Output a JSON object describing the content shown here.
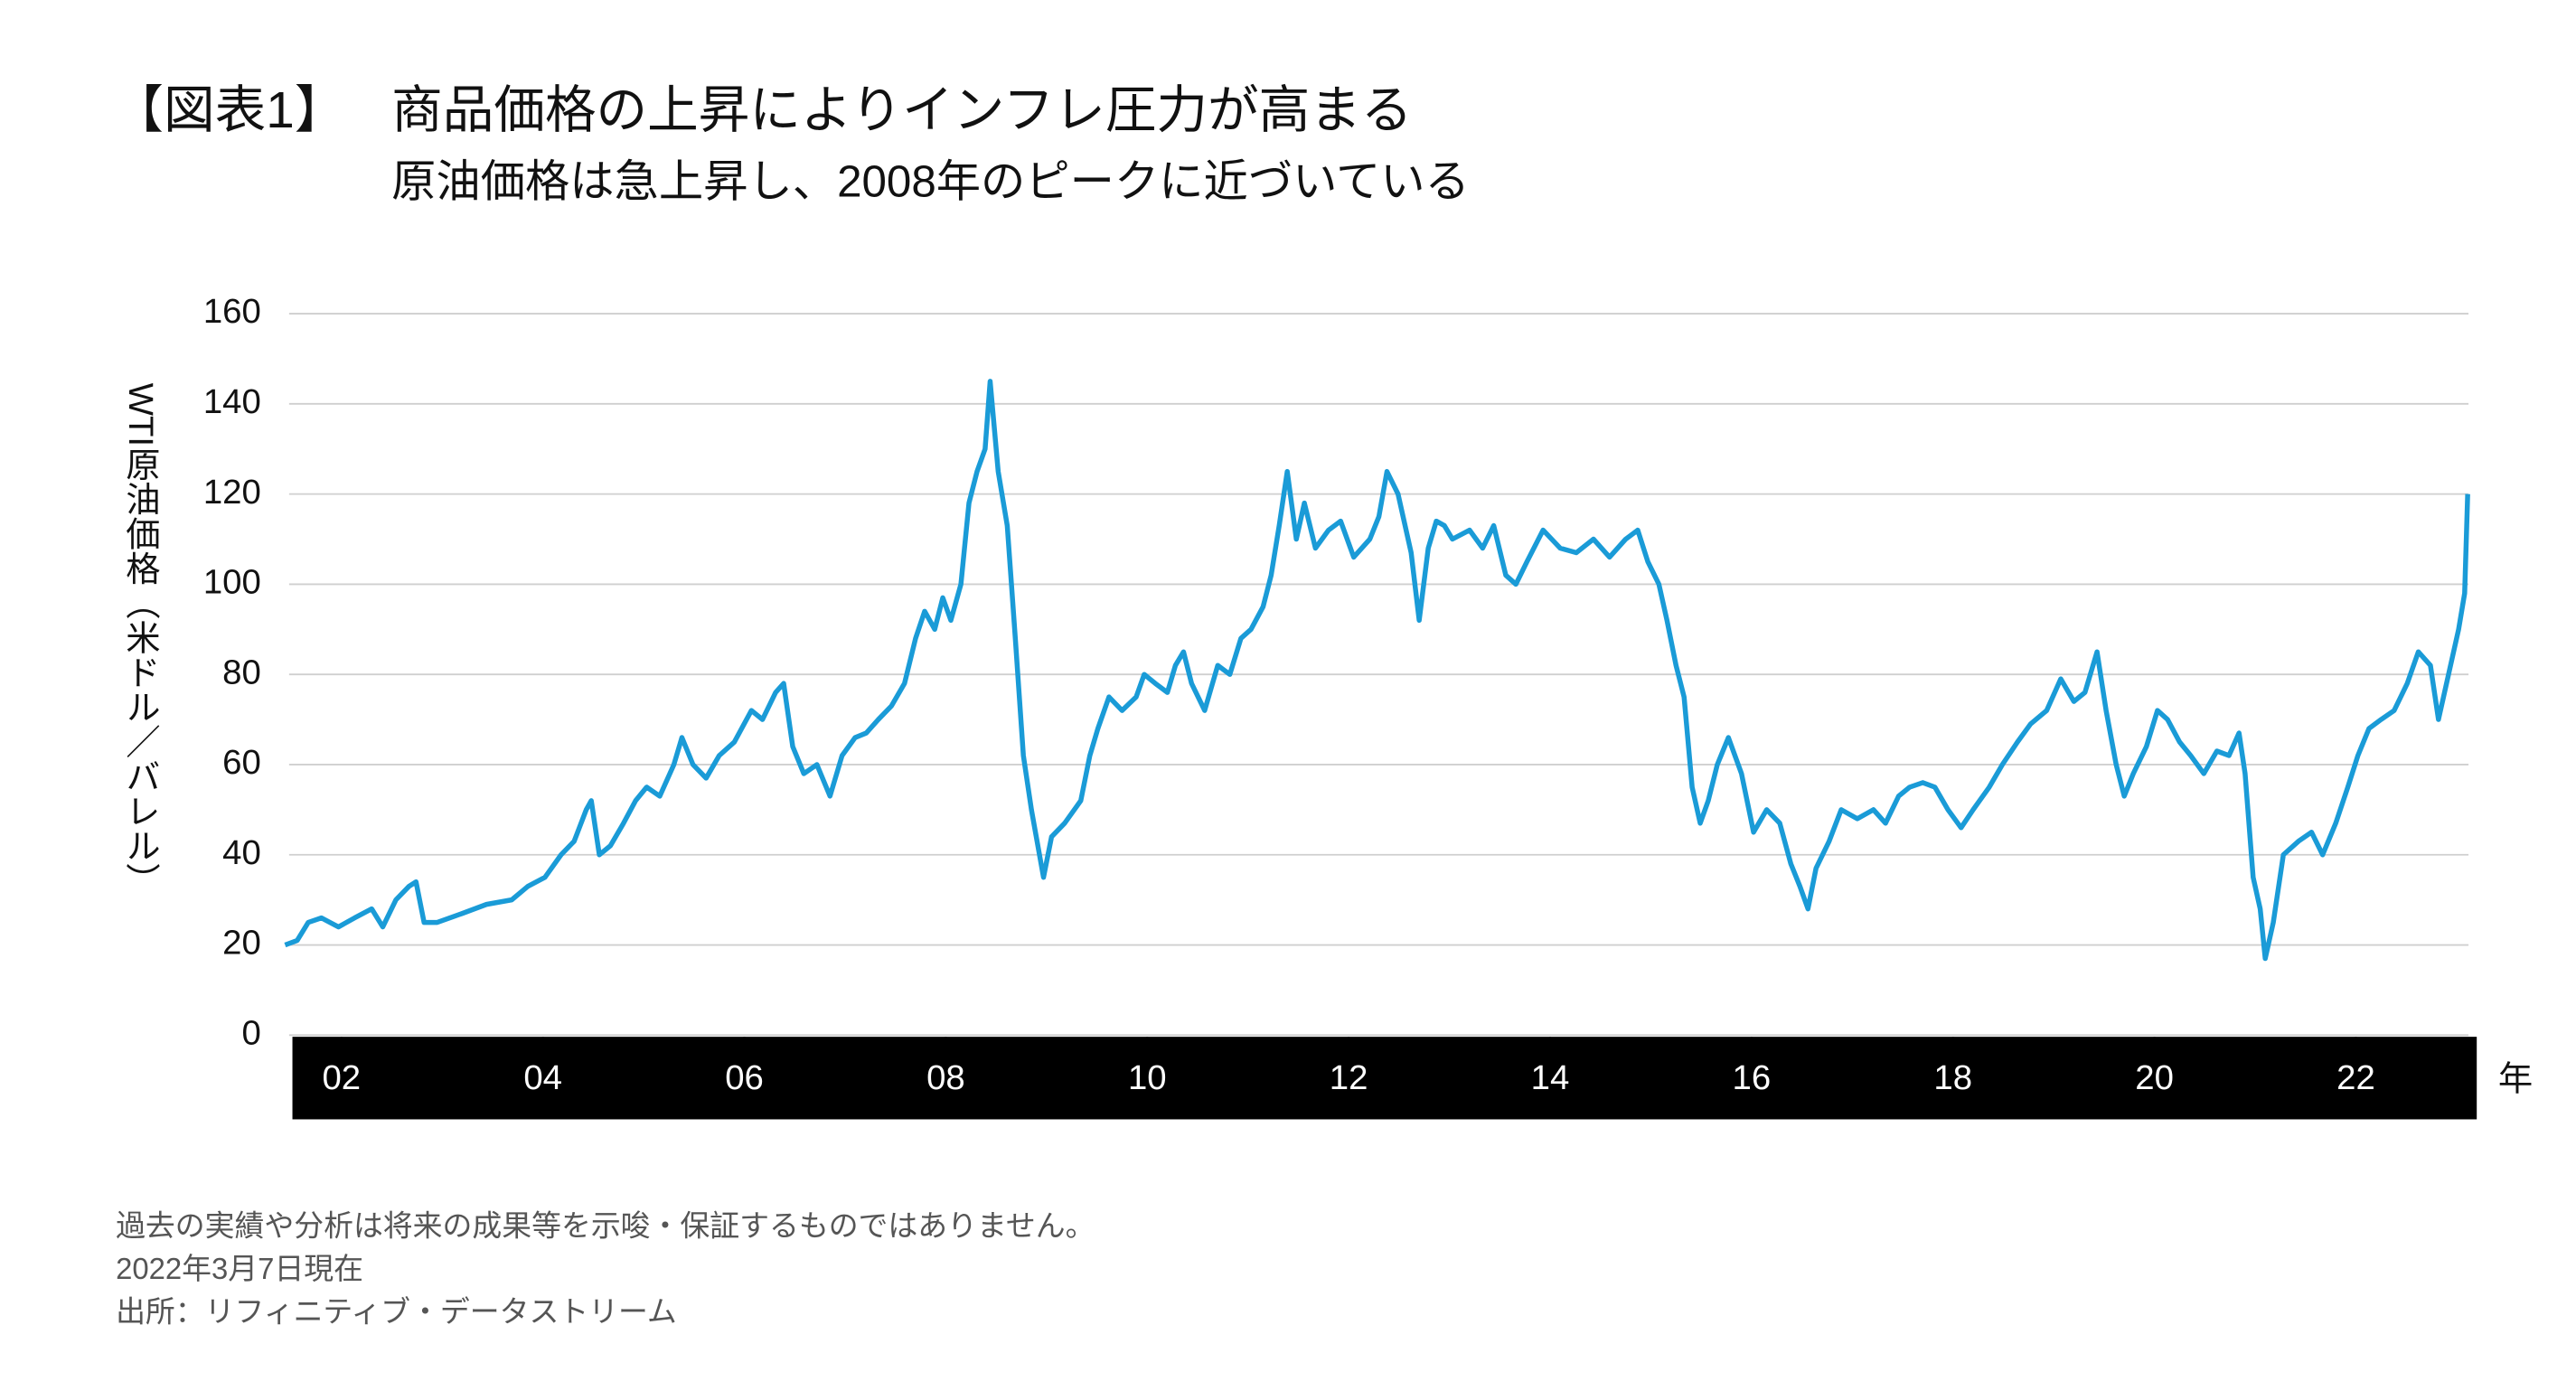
{
  "chart_data": {
    "type": "line",
    "title_label": "【図表1】",
    "title": "商品価格の上昇によりインフレ圧力が高まる",
    "subtitle": "原油価格は急上昇し、2008年のピークに近づいている",
    "y_label": "WTI原油価格（米ドル／バレル）",
    "x_label": "年",
    "notes": [
      "過去の実績や分析は将来の成果等を示唆・保証するものではありません。",
      "2022年3月7日現在",
      "出所：リフィニティブ・データストリーム"
    ],
    "color": "#1a9bd7",
    "grid": true,
    "xlim": [
      2001.48,
      2023.2
    ],
    "xticks": [
      {
        "value": 2002,
        "label": "02"
      },
      {
        "value": 2004,
        "label": "04"
      },
      {
        "value": 2006,
        "label": "06"
      },
      {
        "value": 2008,
        "label": "08"
      },
      {
        "value": 2010,
        "label": "10"
      },
      {
        "value": 2012,
        "label": "12"
      },
      {
        "value": 2014,
        "label": "14"
      },
      {
        "value": 2016,
        "label": "16"
      },
      {
        "value": 2018,
        "label": "18"
      },
      {
        "value": 2020,
        "label": "20"
      },
      {
        "value": 2022,
        "label": "22"
      }
    ],
    "ylim": [
      0,
      160
    ],
    "yticks": [
      0,
      20,
      40,
      60,
      80,
      100,
      120,
      140,
      160
    ],
    "x": [
      2001.44,
      2001.56,
      2001.67,
      2001.8,
      2001.97,
      2002.13,
      2002.3,
      2002.41,
      2002.54,
      2002.67,
      2002.74,
      2002.82,
      2002.95,
      2003.2,
      2003.44,
      2003.69,
      2003.85,
      2004.02,
      2004.18,
      2004.31,
      2004.43,
      2004.48,
      2004.56,
      2004.67,
      2004.8,
      2004.92,
      2005.03,
      2005.16,
      2005.3,
      2005.38,
      2005.49,
      2005.62,
      2005.75,
      2005.9,
      2006.07,
      2006.18,
      2006.31,
      2006.39,
      2006.48,
      2006.59,
      2006.72,
      2006.85,
      2006.97,
      2007.1,
      2007.21,
      2007.33,
      2007.46,
      2007.59,
      2007.7,
      2007.79,
      2007.89,
      2007.97,
      2008.05,
      2008.15,
      2008.23,
      2008.31,
      2008.39,
      2008.44,
      2008.52,
      2008.61,
      2008.69,
      2008.77,
      2008.85,
      2008.97,
      2009.05,
      2009.18,
      2009.34,
      2009.43,
      2009.51,
      2009.62,
      2009.75,
      2009.89,
      2009.97,
      2010.08,
      2010.2,
      2010.28,
      2010.36,
      2010.44,
      2010.57,
      2010.7,
      2010.82,
      2010.93,
      2011.03,
      2011.15,
      2011.23,
      2011.31,
      2011.39,
      2011.48,
      2011.56,
      2011.67,
      2011.8,
      2011.92,
      2012.05,
      2012.21,
      2012.3,
      2012.38,
      2012.49,
      2012.62,
      2012.7,
      2012.79,
      2012.87,
      2012.95,
      2013.03,
      2013.2,
      2013.33,
      2013.44,
      2013.56,
      2013.66,
      2013.77,
      2013.93,
      2014.1,
      2014.26,
      2014.43,
      2014.59,
      2014.75,
      2014.87,
      2014.97,
      2015.08,
      2015.16,
      2015.25,
      2015.33,
      2015.41,
      2015.49,
      2015.57,
      2015.66,
      2015.77,
      2015.9,
      2016.02,
      2016.15,
      2016.28,
      2016.39,
      2016.48,
      2016.56,
      2016.64,
      2016.77,
      2016.89,
      2017.05,
      2017.21,
      2017.33,
      2017.46,
      2017.57,
      2017.7,
      2017.82,
      2017.95,
      2018.08,
      2018.2,
      2018.36,
      2018.49,
      2018.64,
      2018.77,
      2018.93,
      2019.07,
      2019.2,
      2019.31,
      2019.43,
      2019.52,
      2019.62,
      2019.7,
      2019.79,
      2019.92,
      2020.03,
      2020.13,
      2020.25,
      2020.36,
      2020.49,
      2020.62,
      2020.74,
      2020.84,
      2020.9,
      2020.98,
      2021.05,
      2021.1,
      2021.18,
      2021.28,
      2021.43,
      2021.56,
      2021.67,
      2021.8,
      2021.92,
      2022.02,
      2022.13,
      2022.25,
      2022.38,
      2022.51,
      2022.62,
      2022.74,
      2022.82,
      2022.92,
      2023.02,
      2023.08,
      2023.11
    ],
    "values": [
      20,
      21,
      25,
      26,
      24,
      26,
      28,
      24,
      30,
      33,
      34,
      25,
      25,
      27,
      29,
      30,
      33,
      35,
      40,
      43,
      50,
      52,
      40,
      42,
      47,
      52,
      55,
      53,
      60,
      66,
      60,
      57,
      62,
      65,
      72,
      70,
      76,
      78,
      64,
      58,
      60,
      53,
      62,
      66,
      67,
      70,
      73,
      78,
      88,
      94,
      90,
      97,
      92,
      100,
      118,
      125,
      130,
      145,
      125,
      113,
      88,
      62,
      50,
      35,
      44,
      47,
      52,
      62,
      68,
      75,
      72,
      75,
      80,
      78,
      76,
      82,
      85,
      78,
      72,
      82,
      80,
      88,
      90,
      95,
      102,
      113,
      125,
      110,
      118,
      108,
      112,
      114,
      106,
      110,
      115,
      125,
      120,
      107,
      92,
      108,
      114,
      113,
      110,
      112,
      108,
      113,
      102,
      100,
      105,
      112,
      108,
      107,
      110,
      106,
      110,
      112,
      105,
      100,
      92,
      82,
      75,
      55,
      47,
      52,
      60,
      66,
      58,
      45,
      50,
      47,
      38,
      33,
      28,
      37,
      43,
      50,
      48,
      50,
      47,
      53,
      55,
      56,
      55,
      50,
      46,
      50,
      55,
      60,
      65,
      69,
      72,
      79,
      74,
      76,
      85,
      72,
      60,
      53,
      58,
      64,
      72,
      70,
      65,
      62,
      58,
      63,
      62,
      67,
      58,
      35,
      28,
      17,
      25,
      40,
      43,
      45,
      40,
      47,
      55,
      62,
      68,
      70,
      72,
      78,
      85,
      82,
      70,
      80,
      90,
      98,
      120
    ]
  }
}
